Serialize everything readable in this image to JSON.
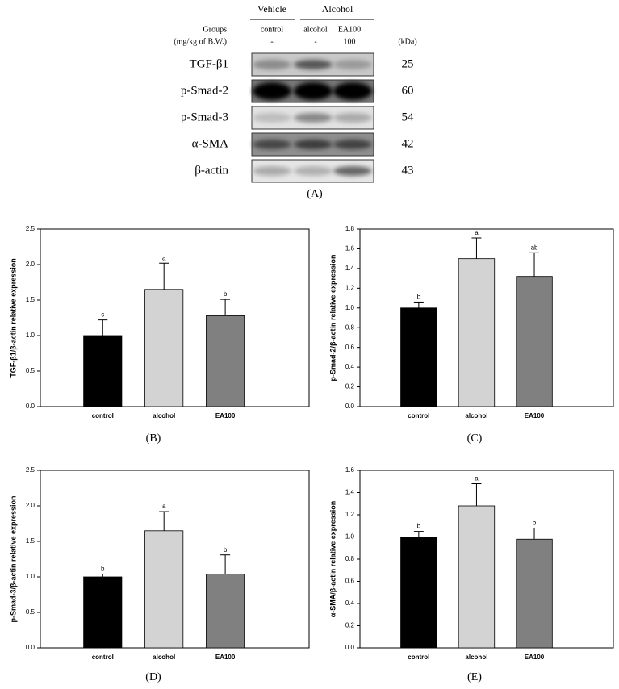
{
  "blot": {
    "header_groups": [
      "Vehicle",
      "Alcohol"
    ],
    "groups_label": "Groups",
    "dose_label": "(mg/kg of B.W.)",
    "kda_label": "(kDa)",
    "columns": [
      {
        "group": "control",
        "dose": "-"
      },
      {
        "group": "alcohol",
        "dose": "-"
      },
      {
        "group": "EA100",
        "dose": "100"
      }
    ],
    "rows": [
      {
        "protein": "TGF-β1",
        "kda": 25
      },
      {
        "protein": "p-Smad-2",
        "kda": 60
      },
      {
        "protein": "p-Smad-3",
        "kda": 54
      },
      {
        "protein": "α-SMA",
        "kda": 42
      },
      {
        "protein": "β-actin",
        "kda": 43
      }
    ],
    "panel_label": "(A)"
  },
  "chart_data": [
    {
      "type": "bar",
      "panel_label": "(B)",
      "ylabel": "TGF-β1/β-actin relative expression",
      "categories": [
        "control",
        "alcohol",
        "EA100"
      ],
      "values": [
        1.0,
        1.65,
        1.28
      ],
      "errors": [
        0.22,
        0.37,
        0.23
      ],
      "annotations": [
        "c",
        "a",
        "b"
      ],
      "colors": [
        "#000000",
        "#d3d3d3",
        "#808080"
      ],
      "ylim": [
        0,
        2.5
      ],
      "yticks": [
        {
          "value": 0,
          "label": "0.0"
        },
        0.5,
        {
          "value": 1,
          "label": "1.0"
        },
        1.5,
        {
          "value": 2,
          "label": "2.0"
        },
        2.5
      ]
    },
    {
      "type": "bar",
      "panel_label": "(C)",
      "ylabel": "p-Smad-2/β-actin relative expression",
      "categories": [
        "control",
        "alcohol",
        "EA100"
      ],
      "values": [
        1.0,
        1.5,
        1.32
      ],
      "errors": [
        0.06,
        0.21,
        0.24
      ],
      "annotations": [
        "b",
        "a",
        "ab"
      ],
      "colors": [
        "#000000",
        "#d3d3d3",
        "#808080"
      ],
      "ylim": [
        0,
        1.8
      ],
      "yticks": [
        {
          "value": 0,
          "label": "0.0"
        },
        0.2,
        0.4,
        0.6,
        0.8,
        {
          "value": 1,
          "label": "1.0"
        },
        1.2,
        1.4,
        1.6,
        1.8
      ]
    },
    {
      "type": "bar",
      "panel_label": "(D)",
      "ylabel": "p-Smad-3/β-actin relative expression",
      "categories": [
        "control",
        "alcohol",
        "EA100"
      ],
      "values": [
        1.0,
        1.65,
        1.04
      ],
      "errors": [
        0.04,
        0.27,
        0.27
      ],
      "annotations": [
        "b",
        "a",
        "b"
      ],
      "colors": [
        "#000000",
        "#d3d3d3",
        "#808080"
      ],
      "ylim": [
        0,
        2.5
      ],
      "yticks": [
        {
          "value": 0,
          "label": "0.0"
        },
        0.5,
        {
          "value": 1,
          "label": "1.0"
        },
        1.5,
        {
          "value": 2,
          "label": "2.0"
        },
        2.5
      ]
    },
    {
      "type": "bar",
      "panel_label": "(E)",
      "ylabel": "α-SMA/β-actin relative expression",
      "categories": [
        "control",
        "alcohol",
        "EA100"
      ],
      "values": [
        1.0,
        1.28,
        0.98
      ],
      "errors": [
        0.05,
        0.2,
        0.1
      ],
      "annotations": [
        "b",
        "a",
        "b"
      ],
      "colors": [
        "#000000",
        "#d3d3d3",
        "#808080"
      ],
      "ylim": [
        0,
        1.6
      ],
      "yticks": [
        {
          "value": 0,
          "label": "0.0"
        },
        0.2,
        0.4,
        0.6,
        0.8,
        {
          "value": 1,
          "label": "1.0"
        },
        1.2,
        1.4,
        1.6
      ]
    }
  ]
}
